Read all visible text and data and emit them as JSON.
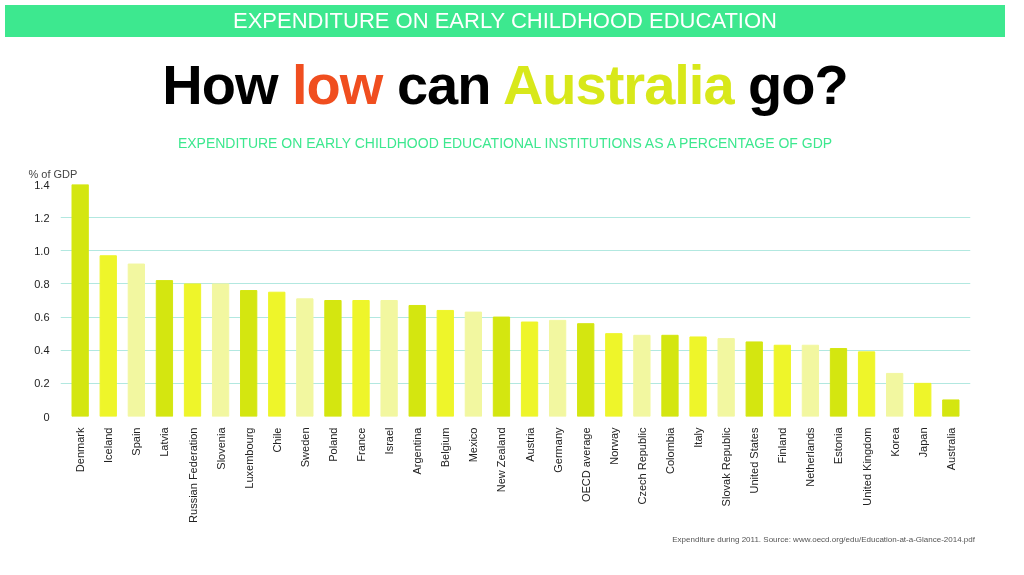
{
  "chart_data": {
    "type": "bar",
    "title": "How low can Australia go?",
    "subtitle": "EXPENDITURE ON EARLY CHILDHOOD EDUCATIONAL INSTITUTIONS AS A PERCENTAGE OF GDP",
    "ylabel": "% of GDP",
    "annotations": [
      "EXPENDITURE ON EARLY CHILDHOOD EDUCATION",
      "Expenditure during 2011. Source: www.oecd.org/edu/Education-at-a-Glance-2014.pdf"
    ],
    "categories": [
      "Denmark",
      "Iceland",
      "Spain",
      "Latvia",
      "Russian Federation",
      "Slovenia",
      "Luxembourg",
      "Chile",
      "Sweden",
      "Poland",
      "France",
      "Israel",
      "Argentina",
      "Belgium",
      "Mexico",
      "New Zealand",
      "Austria",
      "Germany",
      "OECD average",
      "Norway",
      "Czech Republic",
      "Colombia",
      "Italy",
      "Slovak Republic",
      "United States",
      "Finland",
      "Netherlands",
      "Estonia",
      "United Kingdom",
      "Korea",
      "Japan",
      "Australia"
    ],
    "values": [
      1.4,
      0.97,
      0.92,
      0.82,
      0.8,
      0.8,
      0.76,
      0.75,
      0.71,
      0.7,
      0.7,
      0.7,
      0.67,
      0.64,
      0.63,
      0.6,
      0.57,
      0.58,
      0.56,
      0.5,
      0.49,
      0.49,
      0.48,
      0.47,
      0.45,
      0.43,
      0.43,
      0.41,
      0.39,
      0.26,
      0.2,
      0.1
    ],
    "colors": [
      "#d4e610",
      "#eef52a",
      "#f2f7a0",
      "#d4e610",
      "#eef52a",
      "#f2f7a0",
      "#d4e610",
      "#eef52a",
      "#f2f7a0",
      "#d4e610",
      "#eef52a",
      "#f2f7a0",
      "#d4e610",
      "#eef52a",
      "#f2f7a0",
      "#d4e610",
      "#eef52a",
      "#f2f7a0",
      "#d4e610",
      "#eef52a",
      "#f2f7a0",
      "#d4e610",
      "#eef52a",
      "#f2f7a0",
      "#d4e610",
      "#eef52a",
      "#f2f7a0",
      "#d4e610",
      "#eef52a",
      "#f2f7a0",
      "#eef52a",
      "#d4e610"
    ],
    "ylim": [
      0,
      1.4
    ],
    "yticks": [
      0,
      0.2,
      0.4,
      0.6,
      0.8,
      {
        "value": 1,
        "label": "1.0"
      },
      1.2,
      1.4
    ],
    "grid": "y"
  }
}
